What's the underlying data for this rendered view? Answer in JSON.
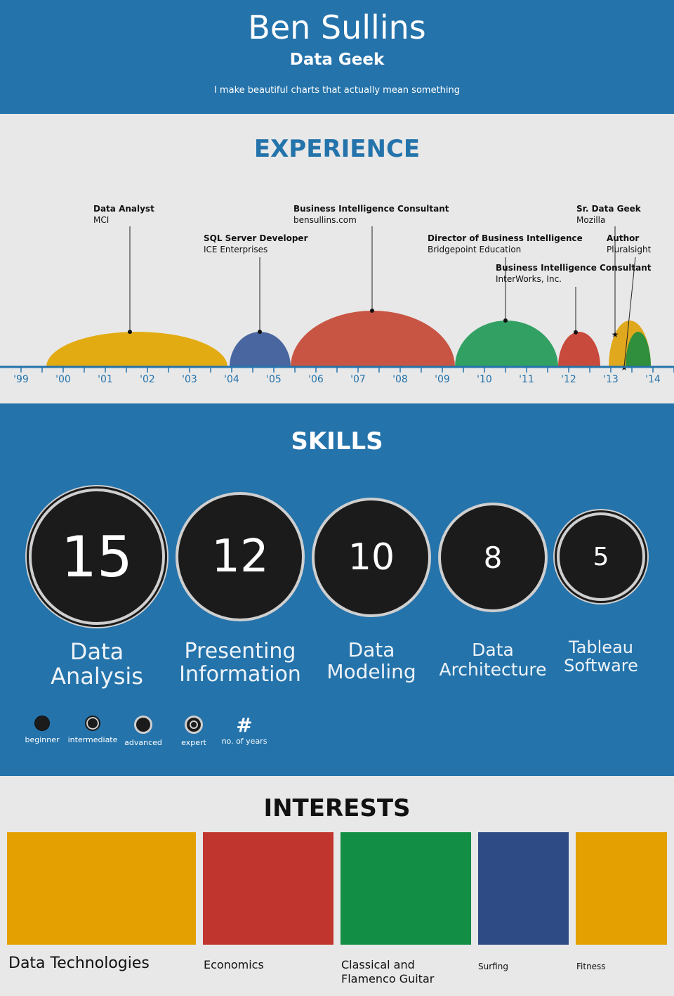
{
  "header": {
    "name": "Ben Sullins",
    "role": "Data Geek",
    "tagline": "I make beautiful charts that actually mean something"
  },
  "experience": {
    "title": "EXPERIENCE",
    "years": [
      "'99",
      "'00",
      "'01",
      "'02",
      "'03",
      "'04",
      "'05",
      "'06",
      "'07",
      "'08",
      "'09",
      "'10",
      "'11",
      "'12",
      "'13",
      "'14"
    ],
    "jobs": [
      {
        "title": "Data Analyst",
        "company": "MCI",
        "start": 1999.6,
        "end": 2003.9,
        "color": "#e2ab12"
      },
      {
        "title": "SQL Server Developer",
        "company": "ICE Enterprises",
        "start": 2003.95,
        "end": 2005.4,
        "color": "#4a66a0"
      },
      {
        "title": "Business Intelligence Consultant",
        "company": "bensullins.com",
        "start": 2005.4,
        "end": 2009.3,
        "color": "#c85543"
      },
      {
        "title": "Director of Business Intelligence",
        "company": "Bridgepoint Education",
        "start": 2009.3,
        "end": 2011.75,
        "color": "#32a063"
      },
      {
        "title": "Business Intelligence Consultant",
        "company": "InterWorks, Inc.",
        "start": 2011.75,
        "end": 2012.75,
        "color": "#c84a3c"
      },
      {
        "title": "Sr. Data Geek",
        "company": "Mozilla",
        "start": 2012.95,
        "end": 2013.95,
        "color": "#e0a81c"
      },
      {
        "title": "Author",
        "company": "Pluralsight",
        "start": 2013.35,
        "end": 2013.95,
        "color": "#2f8f3c"
      }
    ],
    "colors": {
      "axis": "#2473ab",
      "tick_label": "#2473ab"
    }
  },
  "skills": {
    "title": "SKILLS",
    "items": [
      {
        "years": "15",
        "label": "Data Analysis",
        "level": "expert"
      },
      {
        "years": "12",
        "label": "Presenting Information",
        "level": "advanced"
      },
      {
        "years": "10",
        "label": "Data Modeling",
        "level": "advanced"
      },
      {
        "years": "8",
        "label": "Data Architecture",
        "level": "advanced"
      },
      {
        "years": "5",
        "label": "Tableau Software",
        "level": "expert"
      }
    ],
    "legend": [
      {
        "label": "beginner",
        "icon": "filled-circle-icon"
      },
      {
        "label": "intermediate",
        "icon": "ringed-circle-icon"
      },
      {
        "label": "advanced",
        "icon": "bordered-circle-icon"
      },
      {
        "label": "expert",
        "icon": "target-circle-icon"
      },
      {
        "label": "no. of years",
        "symbol": "#",
        "icon": "hash-icon"
      }
    ]
  },
  "interests": {
    "title": "INTERESTS",
    "items": [
      {
        "label": "Data Technologies",
        "color": "#e3a000"
      },
      {
        "label": "Economics",
        "color": "#c0352e"
      },
      {
        "label": "Classical and Flamenco Guitar",
        "color": "#138e45"
      },
      {
        "label": "Surfing",
        "color": "#2f4b85"
      },
      {
        "label": "Fitness",
        "color": "#e3a000"
      }
    ]
  }
}
